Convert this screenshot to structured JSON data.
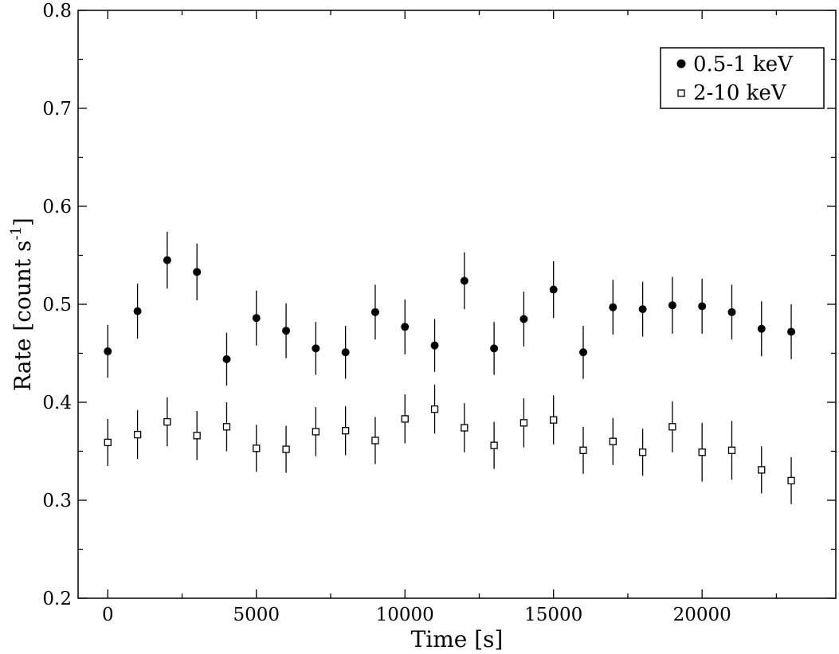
{
  "chart_data": {
    "type": "scatter",
    "xlabel": "Time [s]",
    "ylabel_main": "Rate [count s",
    "ylabel_sup": "-1",
    "ylabel_close": "]",
    "xlim": [
      -1000,
      24500
    ],
    "ylim": [
      0.2,
      0.8
    ],
    "x_ticks": [
      0,
      5000,
      10000,
      15000,
      20000
    ],
    "x_tick_labels": [
      "0",
      "5000",
      "10000",
      "15000",
      "20000"
    ],
    "y_ticks": [
      0.2,
      0.3,
      0.4,
      0.5,
      0.6,
      0.7,
      0.8
    ],
    "y_tick_labels": [
      "0.2",
      "0.3",
      "0.4",
      "0.5",
      "0.6",
      "0.7",
      "0.8"
    ],
    "grid": false,
    "legend_position": "top-right",
    "series": [
      {
        "name": "0.5-1 keV",
        "marker": "filled-circle",
        "x": [
          0,
          1000,
          2000,
          3000,
          4000,
          5000,
          6000,
          7000,
          8000,
          9000,
          10000,
          11000,
          12000,
          13000,
          14000,
          15000,
          16000,
          17000,
          18000,
          19000,
          20000,
          21000,
          22000,
          23000
        ],
        "y": [
          0.452,
          0.493,
          0.545,
          0.533,
          0.444,
          0.486,
          0.473,
          0.455,
          0.451,
          0.492,
          0.477,
          0.458,
          0.524,
          0.455,
          0.485,
          0.515,
          0.451,
          0.497,
          0.495,
          0.499,
          0.498,
          0.492,
          0.475,
          0.472
        ],
        "err": [
          0.027,
          0.028,
          0.029,
          0.029,
          0.027,
          0.028,
          0.028,
          0.027,
          0.027,
          0.028,
          0.028,
          0.027,
          0.029,
          0.027,
          0.028,
          0.029,
          0.027,
          0.028,
          0.028,
          0.029,
          0.028,
          0.028,
          0.028,
          0.028
        ]
      },
      {
        "name": "2-10 keV",
        "marker": "open-square",
        "x": [
          0,
          1000,
          2000,
          3000,
          4000,
          5000,
          6000,
          7000,
          8000,
          9000,
          10000,
          11000,
          12000,
          13000,
          14000,
          15000,
          16000,
          17000,
          18000,
          19000,
          20000,
          21000,
          22000,
          23000
        ],
        "y": [
          0.359,
          0.367,
          0.38,
          0.366,
          0.375,
          0.353,
          0.352,
          0.37,
          0.371,
          0.361,
          0.383,
          0.393,
          0.374,
          0.356,
          0.379,
          0.382,
          0.351,
          0.36,
          0.349,
          0.375,
          0.349,
          0.351,
          0.331,
          0.32
        ],
        "err": [
          0.024,
          0.025,
          0.025,
          0.025,
          0.025,
          0.024,
          0.024,
          0.025,
          0.025,
          0.024,
          0.025,
          0.025,
          0.025,
          0.024,
          0.025,
          0.025,
          0.024,
          0.024,
          0.024,
          0.026,
          0.03,
          0.03,
          0.024,
          0.024
        ]
      }
    ]
  }
}
